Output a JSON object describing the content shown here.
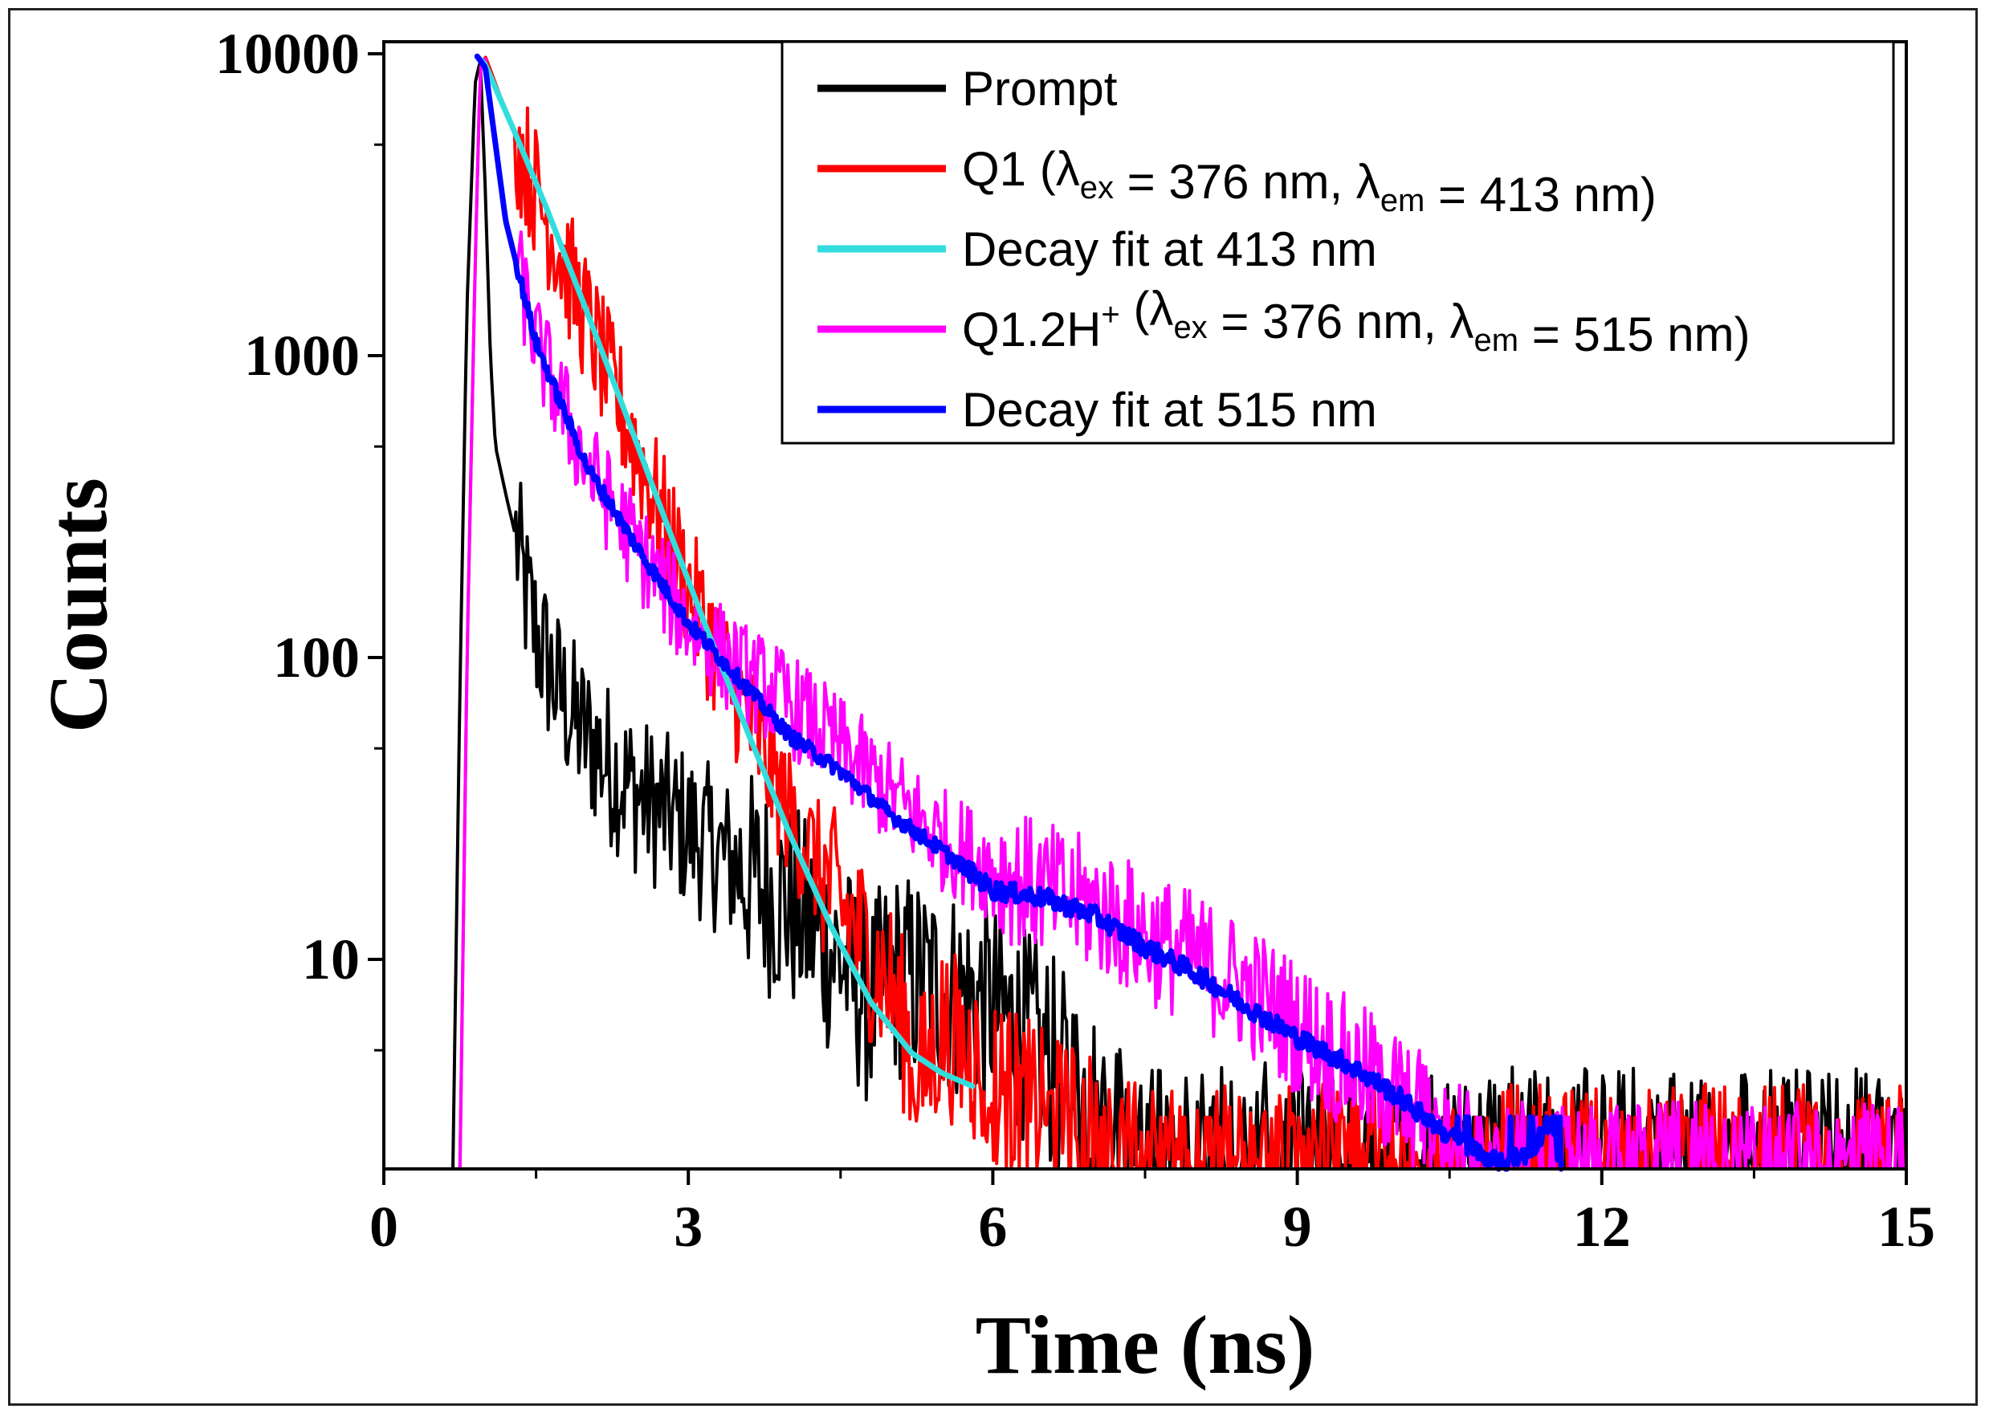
{
  "chart_data": {
    "type": "line",
    "title": "",
    "xlabel": "Time (ns)",
    "ylabel": "Counts",
    "xlim": [
      0,
      15
    ],
    "ylim": [
      2,
      10000
    ],
    "yscale": "log",
    "grid": false,
    "legend_position": "top-right",
    "x_ticks": [
      0,
      3,
      6,
      9,
      12,
      15
    ],
    "x_tick_labels": [
      "0",
      "3",
      "6",
      "9",
      "12",
      "15"
    ],
    "y_ticks": [
      10,
      100,
      1000,
      10000
    ],
    "y_tick_labels": [
      "10",
      "100",
      "1000",
      "10000"
    ],
    "series": [
      {
        "name": "Prompt",
        "color": "#000000",
        "noise": 0.55,
        "x": [
          0.68,
          0.75,
          0.82,
          0.9,
          0.95,
          1.0,
          1.05,
          1.1,
          1.2,
          1.3,
          1.4,
          1.5,
          1.7,
          1.9,
          2.2,
          2.5,
          3.0,
          3.5,
          4.0,
          4.5,
          4.8,
          5.0,
          5.5,
          6.0,
          6.5,
          7.0,
          7.5,
          8.0,
          9.0,
          10.0,
          11.0,
          12.0,
          13.0,
          14.0,
          15.0
        ],
        "y": [
          2,
          80,
          1500,
          8000,
          9500,
          3500,
          1000,
          500,
          350,
          250,
          160,
          120,
          80,
          60,
          45,
          35,
          27,
          20,
          15,
          10,
          7,
          9,
          8,
          7,
          5,
          3,
          2,
          2,
          2,
          2,
          2,
          2,
          2,
          2,
          2
        ]
      },
      {
        "name": "Q1 (λex = 376 nm, λem = 413 nm)",
        "legend_parts": [
          "Q1 (λ",
          "ex",
          " = 376 nm, λ",
          "em",
          " = 413 nm)"
        ],
        "color": "#ff0000",
        "noise": 0.45,
        "x": [
          0.75,
          0.82,
          0.9,
          0.95,
          1.0,
          1.2,
          1.5,
          2.0,
          2.5,
          3.0,
          3.3,
          3.6,
          4.0,
          4.5,
          5.0,
          5.3,
          5.5,
          6.0,
          6.5,
          7.0,
          7.5,
          8.0,
          9.0,
          10.0,
          11.0,
          12.0,
          13.0,
          14.0,
          15.0
        ],
        "y": [
          2,
          100,
          2000,
          9000,
          9800,
          6500,
          3500,
          1300,
          480,
          170,
          100,
          60,
          30,
          15,
          8,
          4,
          6,
          4,
          3,
          2.5,
          2,
          2,
          2,
          2,
          2,
          2,
          2,
          2,
          2
        ]
      },
      {
        "name": "Q1.2H+ (λex = 376 nm, λem = 515 nm)",
        "legend_parts": [
          "Q1.2H",
          "+",
          "  (λ",
          "ex",
          " = 376 nm, λ",
          "em",
          " = 515 nm)"
        ],
        "color": "#ff00ff",
        "noise": 0.35,
        "x": [
          0.75,
          0.82,
          0.9,
          0.95,
          1.0,
          1.2,
          1.5,
          2.0,
          2.5,
          3.0,
          3.5,
          4.0,
          4.5,
          5.0,
          5.5,
          6.0,
          6.5,
          7.0,
          7.5,
          8.0,
          8.5,
          9.0,
          9.5,
          10.0,
          10.5,
          11.0,
          11.5,
          12.0,
          13.0,
          14.0,
          15.0
        ],
        "y": [
          2,
          100,
          2000,
          9000,
          9800,
          2800,
          1100,
          430,
          230,
          130,
          90,
          70,
          50,
          35,
          25,
          20,
          17,
          15,
          12,
          10,
          8,
          6,
          4.5,
          3.5,
          2.5,
          2,
          2,
          2,
          2,
          2,
          2
        ]
      },
      {
        "name": "Decay fit at 413 nm",
        "color": "#33dddd",
        "noise": 0,
        "x": [
          0.92,
          1.0,
          1.3,
          1.6,
          2.0,
          2.4,
          2.8,
          3.2,
          3.6,
          4.0,
          4.4,
          4.8,
          5.2,
          5.5,
          5.8
        ],
        "y": [
          9800,
          9200,
          5400,
          3100,
          1400,
          620,
          270,
          120,
          55,
          26,
          13,
          7.2,
          4.9,
          4.2,
          3.8
        ]
      },
      {
        "name": "Decay fit at 515 nm",
        "color": "#0000ff",
        "noise": 0.05,
        "x": [
          0.92,
          1.0,
          1.2,
          1.5,
          2.0,
          2.5,
          3.0,
          3.5,
          4.0,
          4.5,
          5.0,
          5.5,
          6.0,
          6.5,
          7.0,
          7.5,
          8.0,
          8.5,
          9.0,
          9.5,
          10.0,
          10.5,
          11.0,
          11.3,
          11.5,
          11.6
        ],
        "y": [
          9800,
          9000,
          2800,
          1100,
          430,
          230,
          130,
          85,
          55,
          42,
          30,
          23,
          17,
          16,
          14,
          11,
          9,
          7,
          5.5,
          4.5,
          3.5,
          2.6,
          2.1,
          2.3,
          3.0,
          2.0
        ]
      }
    ],
    "legend_order": [
      "Prompt",
      "Q1 (λex = 376 nm, λem = 413 nm)",
      "Decay fit at 413 nm",
      "Q1.2H+ (λex = 376 nm, λem = 515 nm)",
      "Decay fit at 515 nm"
    ]
  }
}
